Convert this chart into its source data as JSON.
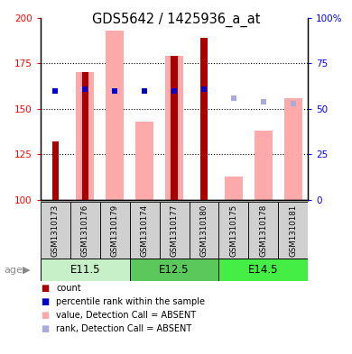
{
  "title": "GDS5642 / 1425936_a_at",
  "samples": [
    "GSM1310173",
    "GSM1310176",
    "GSM1310179",
    "GSM1310174",
    "GSM1310177",
    "GSM1310180",
    "GSM1310175",
    "GSM1310178",
    "GSM1310181"
  ],
  "age_groups": [
    {
      "label": "E11.5",
      "indices": [
        0,
        1,
        2
      ],
      "color": "#C8F0C8"
    },
    {
      "label": "E12.5",
      "indices": [
        3,
        4,
        5
      ],
      "color": "#5AC85A"
    },
    {
      "label": "E14.5",
      "indices": [
        6,
        7,
        8
      ],
      "color": "#44EE44"
    }
  ],
  "count_values": [
    132,
    170,
    null,
    null,
    179,
    189,
    null,
    null,
    null
  ],
  "pink_bar_values": [
    null,
    170,
    193,
    143,
    179,
    null,
    113,
    138,
    156
  ],
  "blue_square_values": [
    160,
    161,
    160,
    160,
    160,
    161,
    null,
    null,
    null
  ],
  "light_blue_square_values": [
    null,
    null,
    null,
    null,
    null,
    null,
    156,
    154,
    153
  ],
  "ylim_left": [
    100,
    200
  ],
  "ylim_right": [
    0,
    100
  ],
  "yticks_left": [
    100,
    125,
    150,
    175,
    200
  ],
  "yticks_right": [
    0,
    25,
    50,
    75,
    100
  ],
  "ytick_labels_right": [
    "0",
    "25",
    "50",
    "75",
    "100%"
  ],
  "count_color": "#AA0000",
  "pink_bar_color": "#FFAAAA",
  "blue_square_color": "#0000CC",
  "light_blue_square_color": "#AAAADD",
  "sample_bg_color": "#D0D0D0",
  "bar_bottom": 100,
  "legend_items": [
    {
      "color": "#AA0000",
      "label": "count"
    },
    {
      "color": "#0000CC",
      "label": "percentile rank within the sample"
    },
    {
      "color": "#FFAAAA",
      "label": "value, Detection Call = ABSENT"
    },
    {
      "color": "#AAAADD",
      "label": "rank, Detection Call = ABSENT"
    }
  ]
}
